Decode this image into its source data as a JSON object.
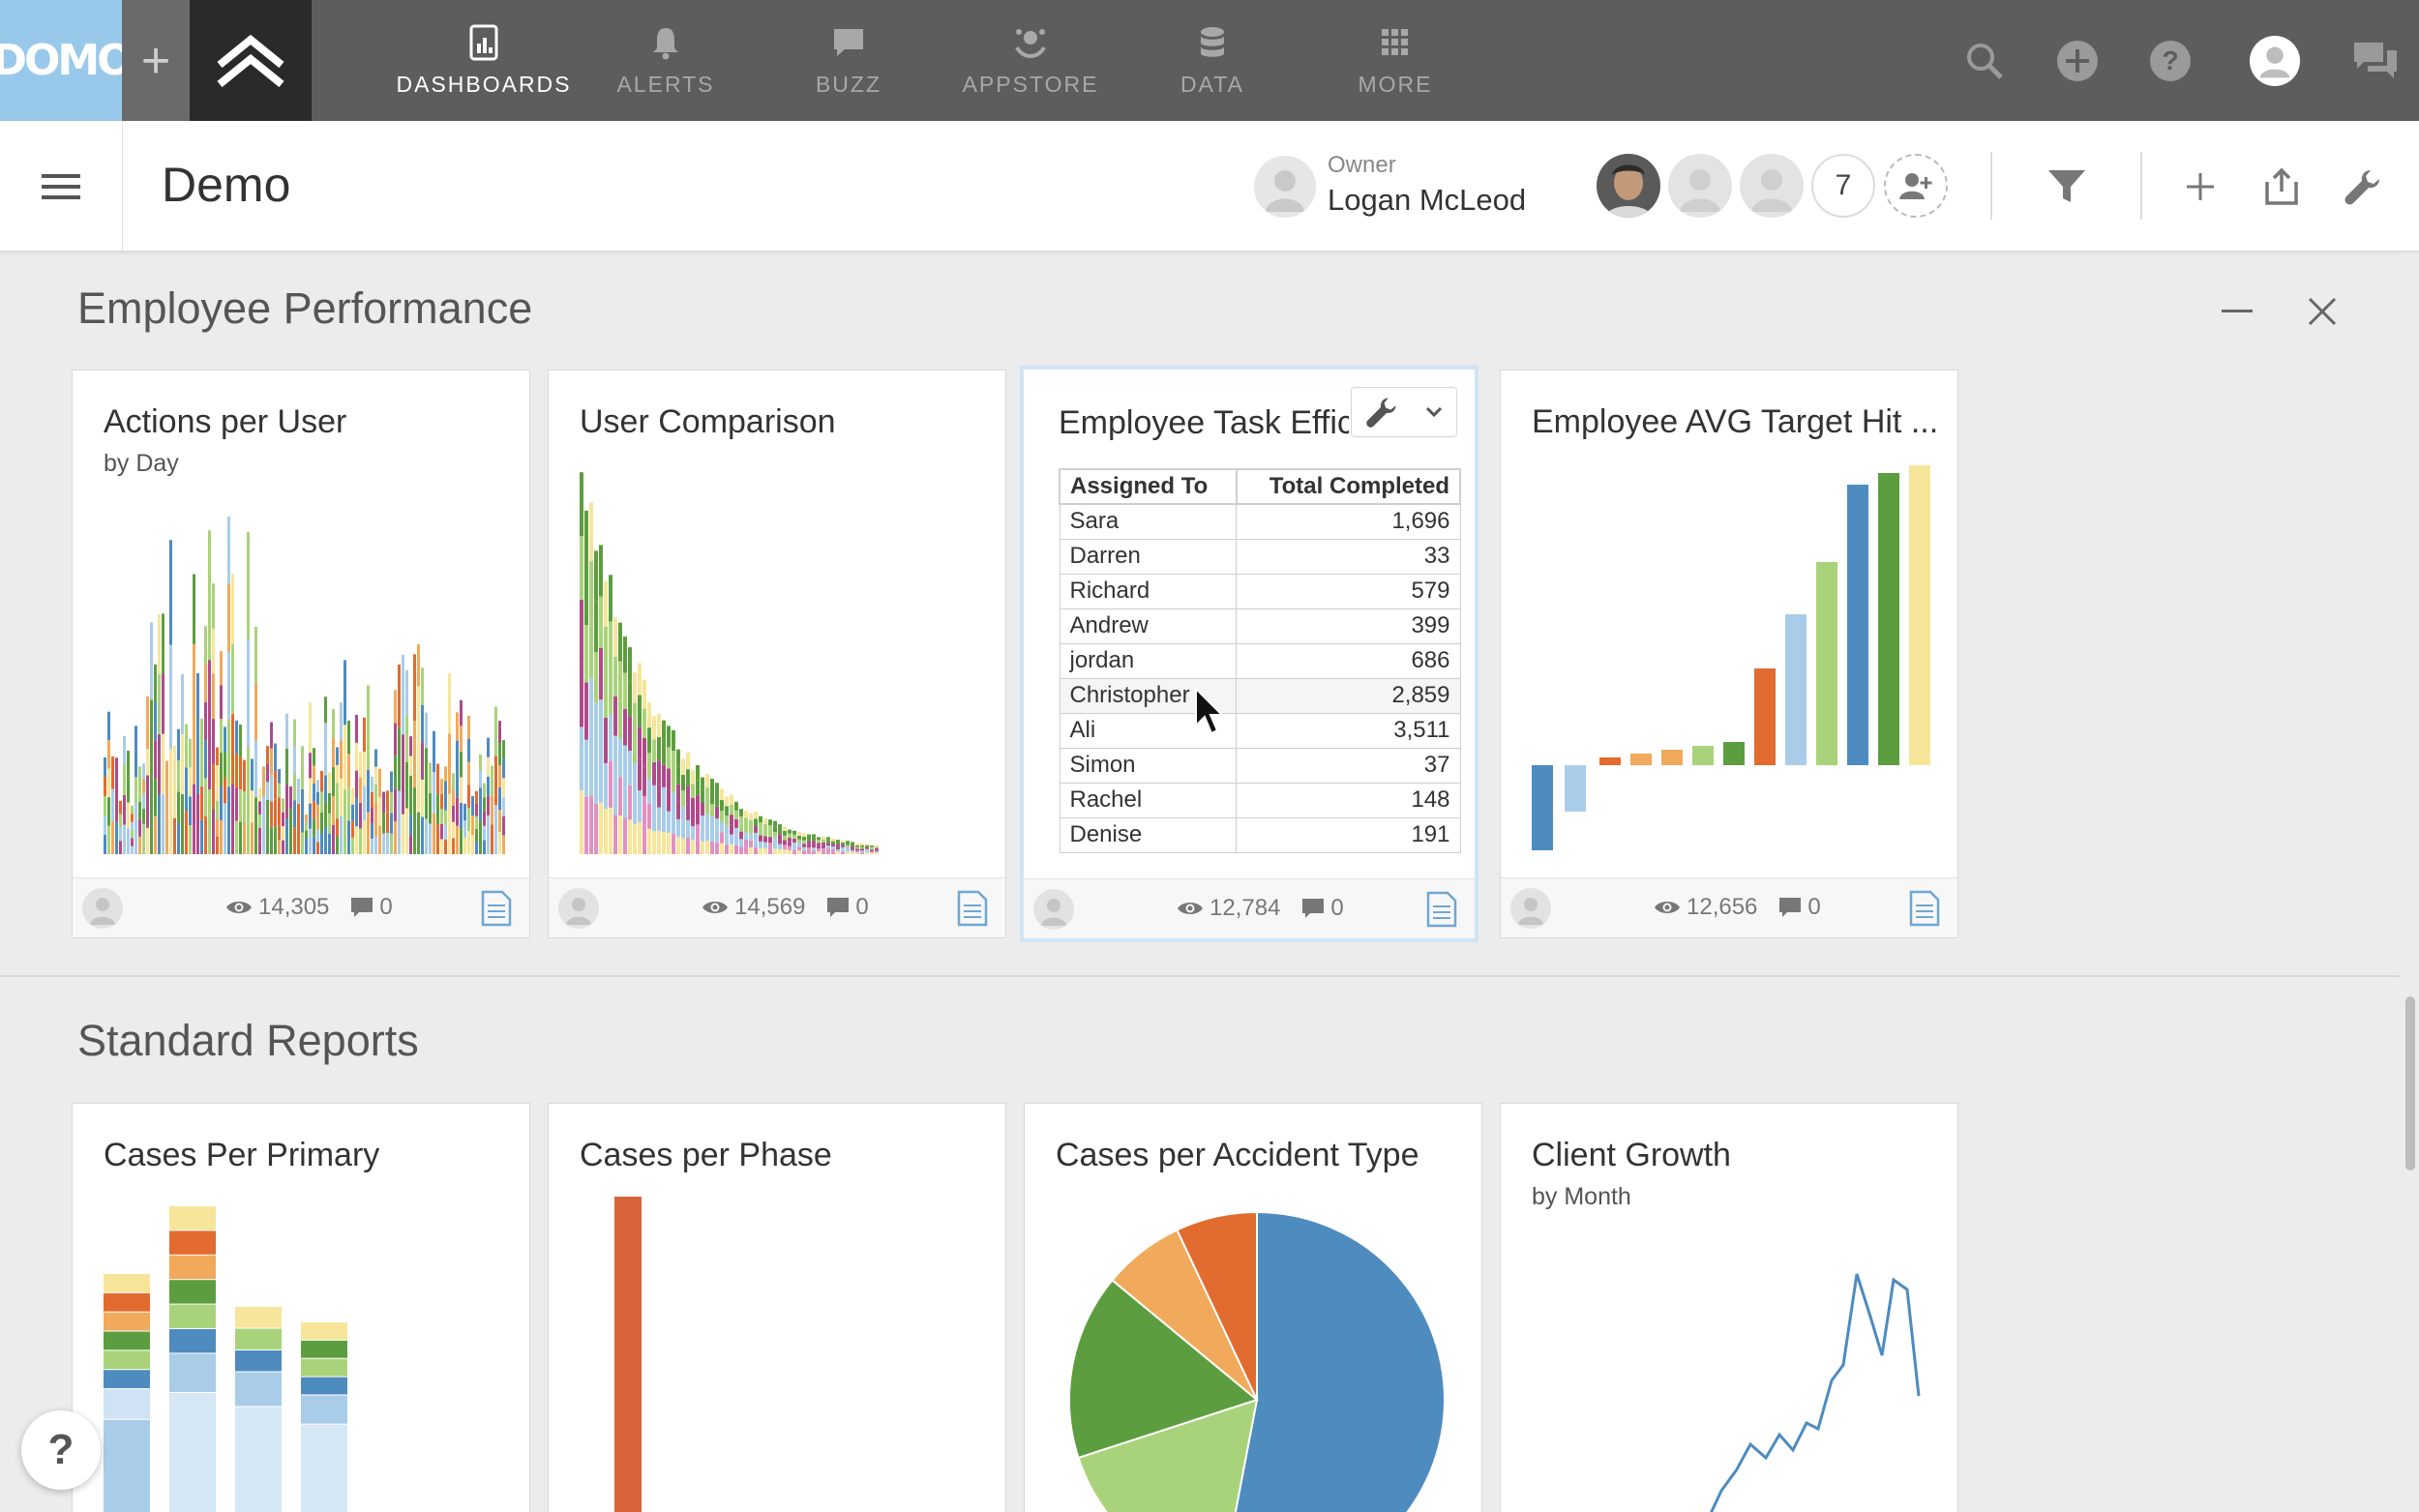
{
  "topbar": {
    "logo_text": "DOMO",
    "plus_label": "+",
    "nav": [
      {
        "label": "DASHBOARDS",
        "icon": "dashboards-icon",
        "active": true
      },
      {
        "label": "ALERTS",
        "icon": "bell-icon"
      },
      {
        "label": "BUZZ",
        "icon": "chat-icon"
      },
      {
        "label": "APPSTORE",
        "icon": "appstore-icon"
      },
      {
        "label": "DATA",
        "icon": "database-icon"
      },
      {
        "label": "MORE",
        "icon": "grid-icon"
      }
    ],
    "right_icons": [
      "search-icon",
      "add-circle-icon",
      "help-icon",
      "user-avatar",
      "buzz-panel-icon"
    ]
  },
  "header": {
    "page_title": "Demo",
    "owner_label": "Owner",
    "owner_name": "Logan McLeod",
    "shared_count": "7"
  },
  "sections": [
    {
      "title": "Employee Performance",
      "cards": [
        {
          "title": "Actions per User",
          "subtitle": "by Day",
          "views": "14,305",
          "comments": "0"
        },
        {
          "title": "User Comparison",
          "subtitle": "",
          "views": "14,569",
          "comments": "0"
        },
        {
          "title": "Employee Task Efficiency",
          "subtitle": "",
          "views": "12,784",
          "comments": "0"
        },
        {
          "title": "Employee AVG Target Hit ...",
          "subtitle": "",
          "views": "12,656",
          "comments": "0"
        }
      ]
    },
    {
      "title": "Standard Reports",
      "cards": [
        {
          "title": "Cases Per Primary",
          "subtitle": ""
        },
        {
          "title": "Cases per Phase",
          "subtitle": ""
        },
        {
          "title": "Cases per Accident Type",
          "subtitle": ""
        },
        {
          "title": "Client Growth",
          "subtitle": "by Month"
        }
      ]
    }
  ],
  "chart_data": {
    "type": "table",
    "columns": [
      "Assigned To",
      "Total Completed"
    ],
    "rows": [
      [
        "Sara",
        "1,696"
      ],
      [
        "Darren",
        "33"
      ],
      [
        "Richard",
        "579"
      ],
      [
        "Andrew",
        "399"
      ],
      [
        "jordan",
        "686"
      ],
      [
        "Christopher",
        "2,859"
      ],
      [
        "Ali",
        "3,511"
      ],
      [
        "Simon",
        "37"
      ],
      [
        "Rachel",
        "148"
      ],
      [
        "Denise",
        "191"
      ]
    ]
  },
  "colors": {
    "topbar": "#5d5d5d",
    "logo_bg": "#99c9ea",
    "blue": "#4e8bbf",
    "light_blue": "#a9cde9",
    "green": "#5c9e3f",
    "light_green": "#a9d37a",
    "orange": "#e26b2f",
    "light_orange": "#f1a95b",
    "yellow": "#f7e59a"
  },
  "help_label": "?"
}
